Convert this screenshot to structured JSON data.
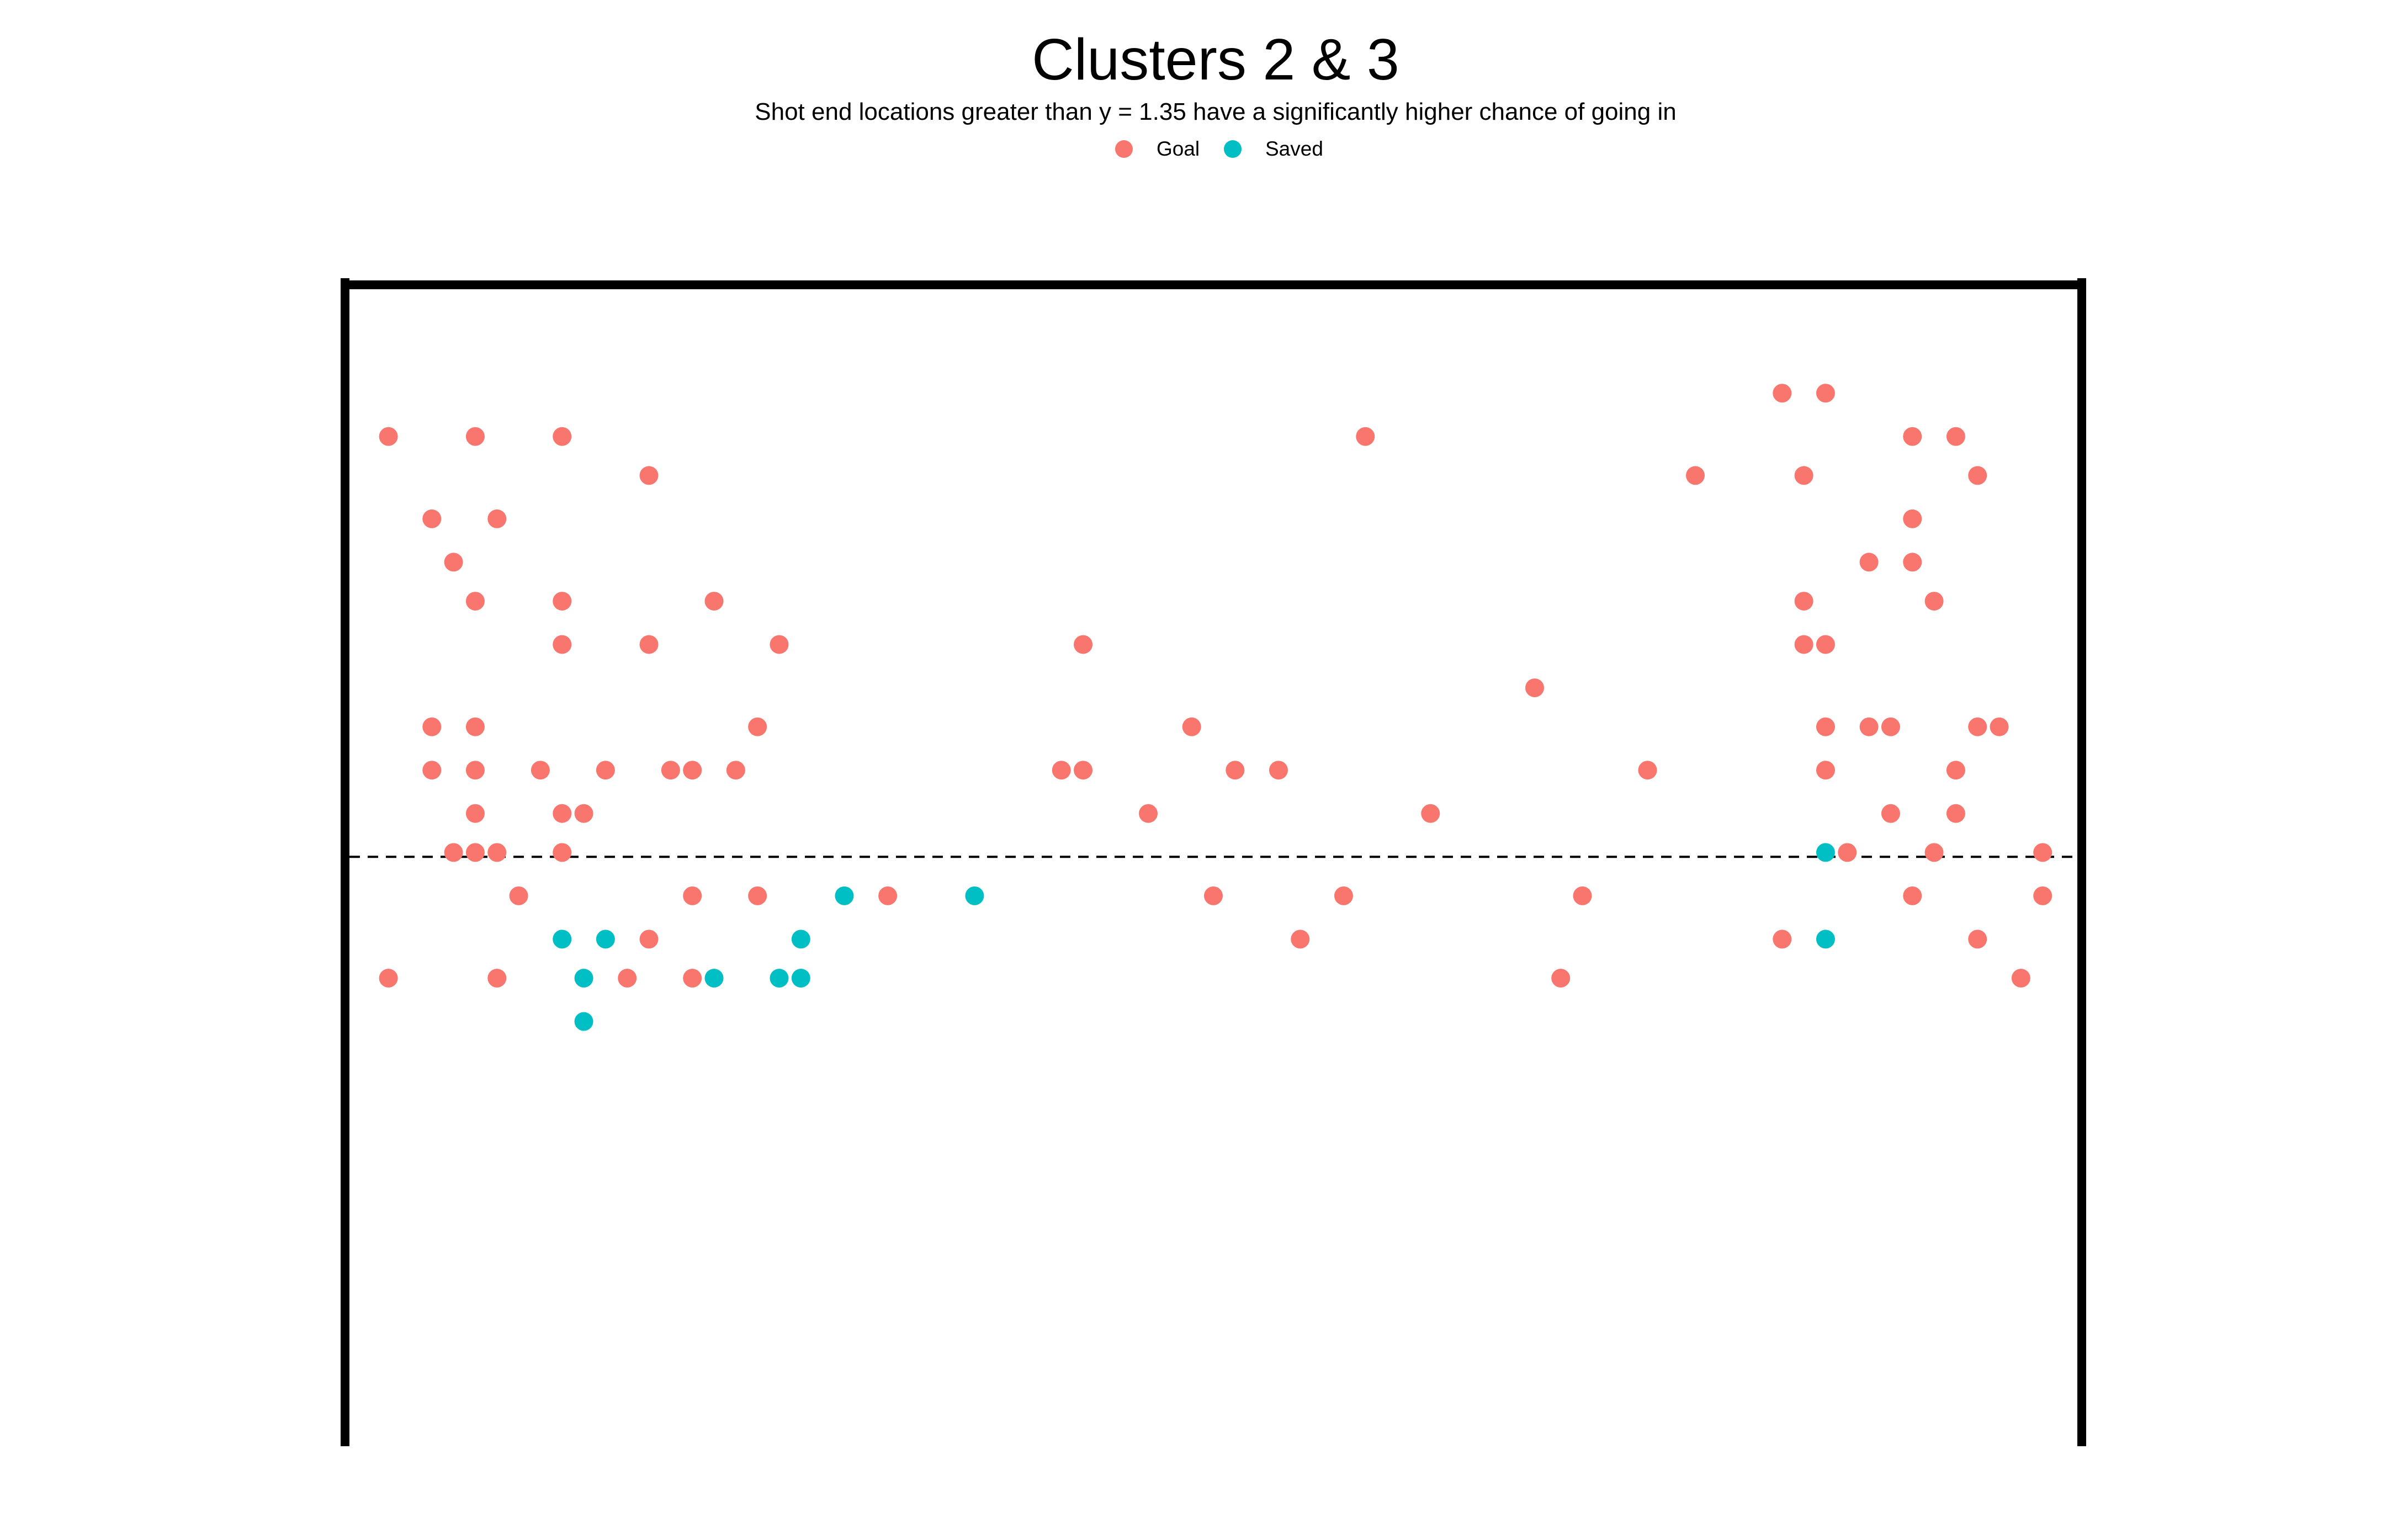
{
  "chart_data": {
    "type": "scatter",
    "title": "Clusters 2 & 3",
    "subtitle": "Shot end locations greater than y = 1.35 have a significantly higher chance of going in",
    "xlabel": "",
    "ylabel": "",
    "xlim": [
      0,
      40
    ],
    "ylim": [
      0,
      2.67
    ],
    "grid": false,
    "axes_visible": false,
    "legend_position": "top",
    "reference_line": {
      "y": 1.35,
      "style": "dashed",
      "color": "#000000"
    },
    "goal_frame": {
      "color": "#000000",
      "posts_x": [
        0,
        40
      ],
      "crossbar_y": 2.67
    },
    "colors": {
      "Goal": "#F8766D",
      "Saved": "#00BFC4"
    },
    "series": [
      {
        "name": "Goal",
        "color": "#F8766D",
        "points": [
          [
            33.1,
            2.42
          ],
          [
            34.1,
            2.42
          ],
          [
            1.0,
            2.32
          ],
          [
            3.0,
            2.32
          ],
          [
            5.0,
            2.32
          ],
          [
            23.5,
            2.32
          ],
          [
            36.1,
            2.32
          ],
          [
            37.1,
            2.32
          ],
          [
            7.0,
            2.23
          ],
          [
            31.1,
            2.23
          ],
          [
            33.6,
            2.23
          ],
          [
            37.6,
            2.23
          ],
          [
            2.0,
            2.13
          ],
          [
            3.5,
            2.13
          ],
          [
            36.1,
            2.13
          ],
          [
            2.5,
            2.03
          ],
          [
            35.1,
            2.03
          ],
          [
            36.1,
            2.03
          ],
          [
            3.0,
            1.94
          ],
          [
            5.0,
            1.94
          ],
          [
            8.5,
            1.94
          ],
          [
            33.6,
            1.94
          ],
          [
            36.6,
            1.94
          ],
          [
            5.0,
            1.84
          ],
          [
            7.0,
            1.84
          ],
          [
            10.0,
            1.84
          ],
          [
            17.0,
            1.84
          ],
          [
            33.6,
            1.84
          ],
          [
            34.1,
            1.84
          ],
          [
            27.4,
            1.74
          ],
          [
            2.0,
            1.65
          ],
          [
            3.0,
            1.65
          ],
          [
            9.5,
            1.65
          ],
          [
            19.5,
            1.65
          ],
          [
            34.1,
            1.65
          ],
          [
            35.1,
            1.65
          ],
          [
            35.6,
            1.65
          ],
          [
            37.6,
            1.65
          ],
          [
            38.1,
            1.65
          ],
          [
            2.0,
            1.55
          ],
          [
            3.0,
            1.55
          ],
          [
            4.5,
            1.55
          ],
          [
            6.0,
            1.55
          ],
          [
            7.5,
            1.55
          ],
          [
            8.0,
            1.55
          ],
          [
            9.0,
            1.55
          ],
          [
            16.5,
            1.55
          ],
          [
            17.0,
            1.55
          ],
          [
            20.5,
            1.55
          ],
          [
            21.5,
            1.55
          ],
          [
            30.0,
            1.55
          ],
          [
            34.1,
            1.55
          ],
          [
            37.1,
            1.55
          ],
          [
            3.0,
            1.45
          ],
          [
            5.0,
            1.45
          ],
          [
            5.5,
            1.45
          ],
          [
            18.5,
            1.45
          ],
          [
            25.0,
            1.45
          ],
          [
            35.6,
            1.45
          ],
          [
            37.1,
            1.45
          ],
          [
            2.5,
            1.36
          ],
          [
            3.0,
            1.36
          ],
          [
            3.5,
            1.36
          ],
          [
            5.0,
            1.36
          ],
          [
            34.6,
            1.36
          ],
          [
            36.6,
            1.36
          ],
          [
            39.1,
            1.36
          ],
          [
            4.0,
            1.26
          ],
          [
            8.0,
            1.26
          ],
          [
            9.5,
            1.26
          ],
          [
            12.5,
            1.26
          ],
          [
            20.0,
            1.26
          ],
          [
            23.0,
            1.26
          ],
          [
            28.5,
            1.26
          ],
          [
            36.1,
            1.26
          ],
          [
            39.1,
            1.26
          ],
          [
            7.0,
            1.16
          ],
          [
            22.0,
            1.16
          ],
          [
            33.1,
            1.16
          ],
          [
            37.6,
            1.16
          ],
          [
            1.0,
            1.07
          ],
          [
            3.5,
            1.07
          ],
          [
            6.5,
            1.07
          ],
          [
            8.0,
            1.07
          ],
          [
            28.0,
            1.07
          ],
          [
            38.6,
            1.07
          ]
        ]
      },
      {
        "name": "Saved",
        "color": "#00BFC4",
        "points": [
          [
            34.1,
            1.36
          ],
          [
            11.5,
            1.26
          ],
          [
            14.5,
            1.26
          ],
          [
            5.0,
            1.16
          ],
          [
            6.0,
            1.16
          ],
          [
            10.5,
            1.16
          ],
          [
            34.1,
            1.16
          ],
          [
            5.5,
            1.07
          ],
          [
            8.5,
            1.07
          ],
          [
            10.0,
            1.07
          ],
          [
            10.5,
            1.07
          ],
          [
            5.5,
            0.97
          ]
        ]
      }
    ]
  }
}
